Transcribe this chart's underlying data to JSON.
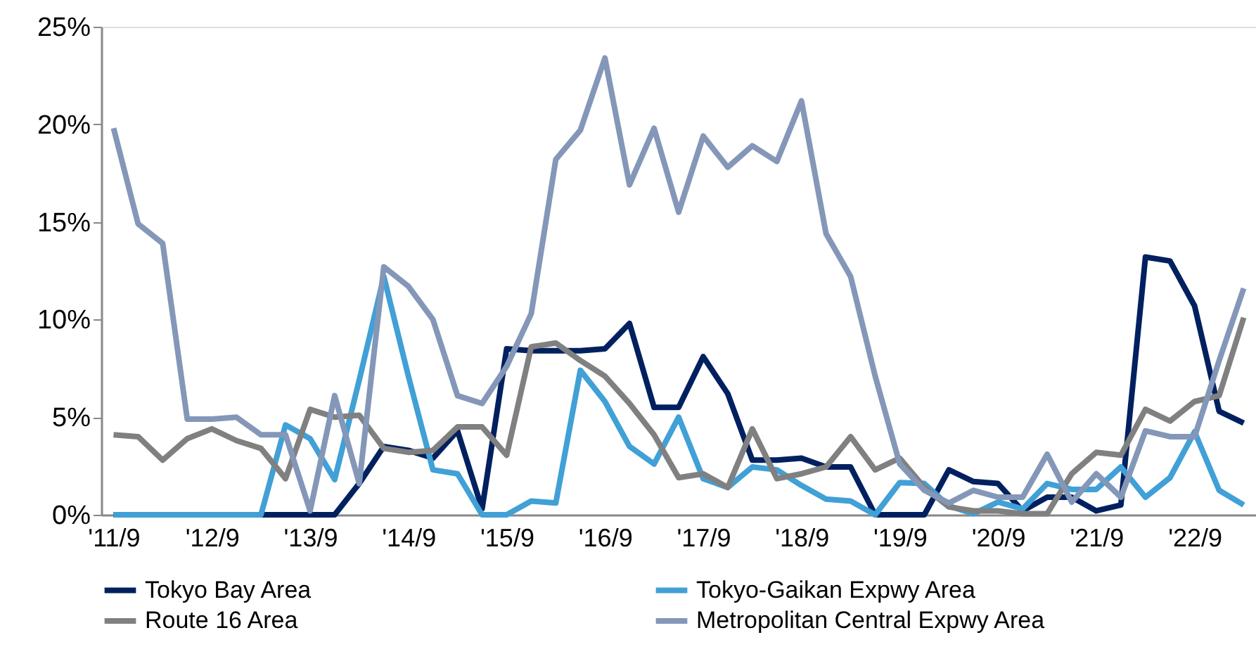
{
  "chart_data": {
    "type": "line",
    "categories": [
      "'11/9",
      null,
      null,
      null,
      "'12/9",
      null,
      null,
      null,
      "'13/9",
      null,
      null,
      null,
      "'14/9",
      null,
      null,
      null,
      "'15/9",
      null,
      null,
      null,
      "'16/9",
      null,
      null,
      null,
      "'17/9",
      null,
      null,
      null,
      "'18/9",
      null,
      null,
      null,
      "'19/9",
      null,
      null,
      null,
      "'20/9",
      null,
      null,
      null,
      "'21/9",
      null,
      null,
      null,
      "'22/9",
      null,
      null
    ],
    "series": [
      {
        "name": "Tokyo Bay Area",
        "color": "#002060",
        "values": [
          0,
          0,
          0,
          0,
          0,
          0,
          0,
          0,
          0,
          0,
          1.6,
          3.5,
          3.3,
          2.9,
          4.3,
          0.3,
          8.5,
          8.4,
          8.4,
          8.4,
          8.5,
          9.8,
          5.5,
          5.5,
          8.1,
          6.2,
          2.8,
          2.8,
          2.9,
          2.45,
          2.45,
          0,
          0,
          0,
          2.3,
          1.7,
          1.6,
          0.2,
          0.9,
          0.9,
          0.2,
          0.5,
          13.2,
          13.0,
          10.7,
          5.3,
          4.7
        ]
      },
      {
        "name": "Tokyo-Gaikan Expwy Area",
        "color": "#41a0d6",
        "values": [
          0,
          0,
          0,
          0,
          0,
          0,
          0,
          4.6,
          3.9,
          1.8,
          6.9,
          12.2,
          7.1,
          2.3,
          2.1,
          0,
          0,
          0.7,
          0.6,
          7.4,
          5.8,
          3.5,
          2.6,
          5.0,
          1.85,
          1.4,
          2.45,
          2.3,
          1.5,
          0.8,
          0.7,
          0,
          1.65,
          1.6,
          0.45,
          0.05,
          0.65,
          0.3,
          1.6,
          1.3,
          1.3,
          2.45,
          0.9,
          1.9,
          4.25,
          1.25,
          0.5
        ]
      },
      {
        "name": "Route 16 Area",
        "color": "#808080",
        "values": [
          4.1,
          4.0,
          2.8,
          3.9,
          4.4,
          3.8,
          3.4,
          1.85,
          5.4,
          5.0,
          5.1,
          3.4,
          3.2,
          3.3,
          4.5,
          4.5,
          3.05,
          8.6,
          8.8,
          7.9,
          7.1,
          5.7,
          4.1,
          1.9,
          2.1,
          1.4,
          4.4,
          1.85,
          2.1,
          2.45,
          4.0,
          2.3,
          2.9,
          1.4,
          0.4,
          0.2,
          0.2,
          0.05,
          0.05,
          2.1,
          3.2,
          3.05,
          5.4,
          4.8,
          5.8,
          6.1,
          10.1
        ]
      },
      {
        "name": "Metropolitan Central Expwy Area",
        "color": "#8497b8",
        "values": [
          19.8,
          14.9,
          13.9,
          4.9,
          4.9,
          5.0,
          4.1,
          4.1,
          0.2,
          6.1,
          1.6,
          12.7,
          11.7,
          10.0,
          6.1,
          5.7,
          7.6,
          10.3,
          18.2,
          19.7,
          23.4,
          16.9,
          19.8,
          15.5,
          19.4,
          17.8,
          18.9,
          18.1,
          21.2,
          14.4,
          12.2,
          7.1,
          2.6,
          1.25,
          0.6,
          1.25,
          0.9,
          0.9,
          3.1,
          0.65,
          2.1,
          0.9,
          4.3,
          4.0,
          4.0,
          7.9,
          11.6
        ]
      }
    ],
    "ylim": [
      0,
      25
    ],
    "yticks": [
      {
        "value": 0,
        "label": "0%"
      },
      {
        "value": 5,
        "label": "5%"
      },
      {
        "value": 10,
        "label": "10%"
      },
      {
        "value": 15,
        "label": "15%"
      },
      {
        "value": 20,
        "label": "20%"
      },
      {
        "value": 25,
        "label": "25%"
      }
    ],
    "grid": false,
    "legend": "bottom",
    "marker": "none",
    "line_style": "solid"
  }
}
